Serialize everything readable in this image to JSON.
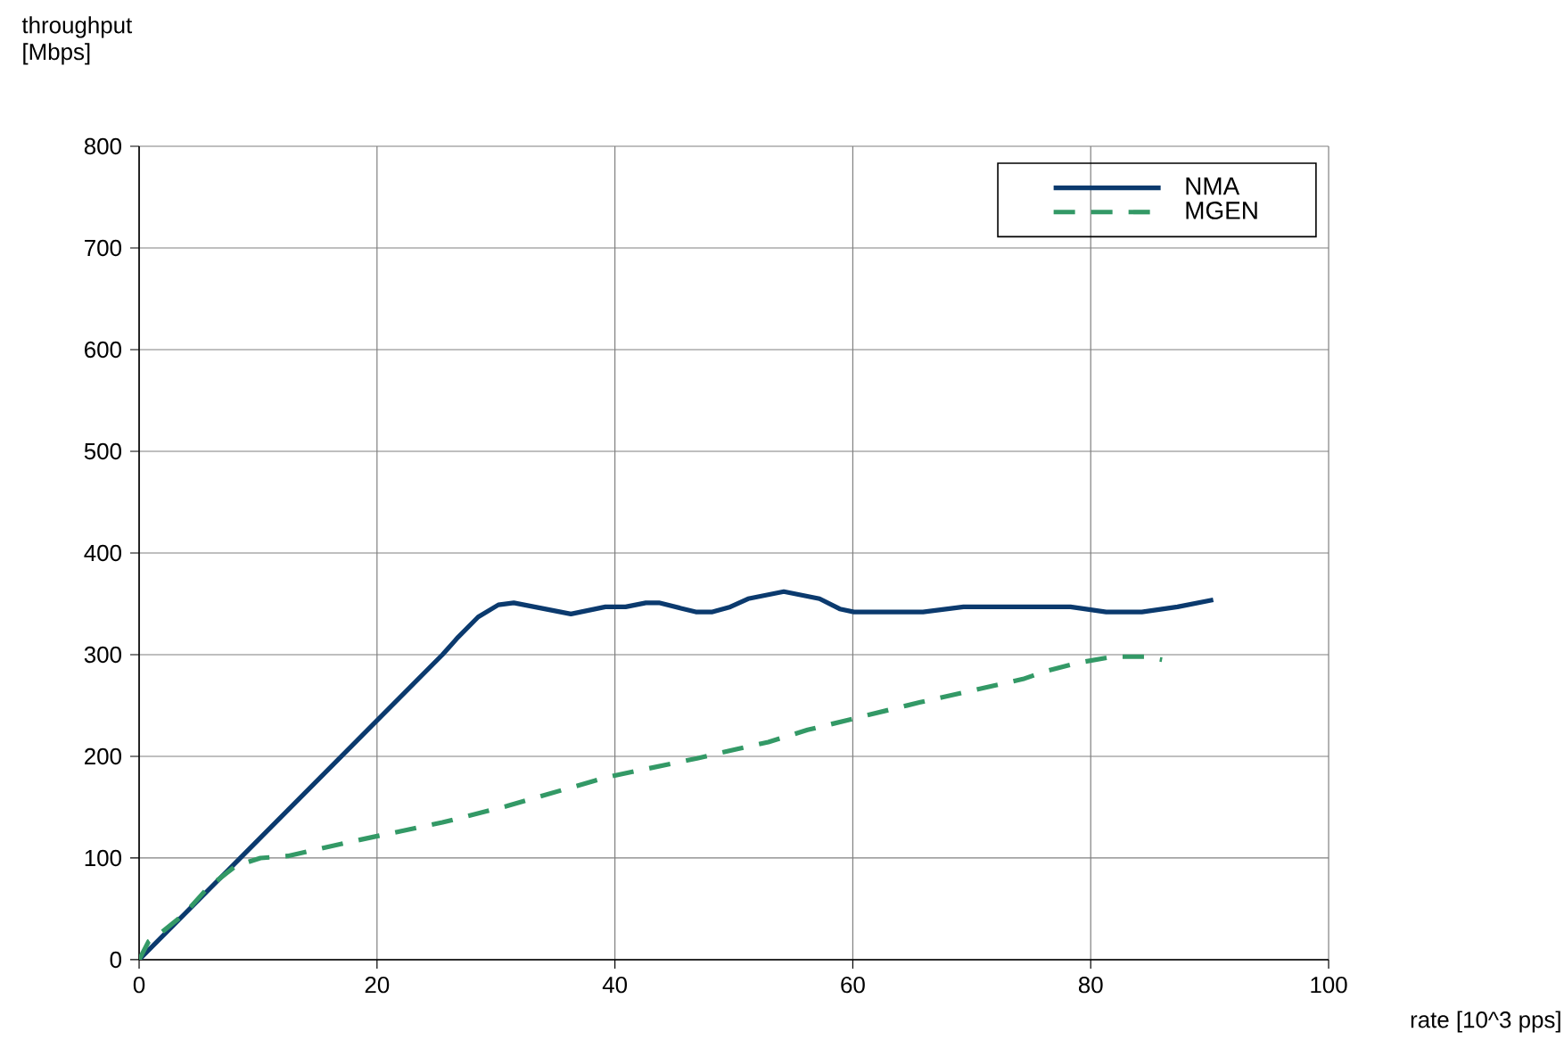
{
  "chart_data": {
    "type": "line",
    "xlabel": "rate [10^3 pps]",
    "ylabel": "throughput [Mbps]",
    "xlim": [
      0,
      100
    ],
    "ylim": [
      0,
      800
    ],
    "xticks": [
      0,
      20,
      40,
      60,
      80,
      100
    ],
    "yticks": [
      0,
      100,
      200,
      300,
      400,
      500,
      600,
      700,
      800
    ],
    "grid": true,
    "legend": "top right",
    "series": [
      {
        "name": "NMA",
        "color": "#0b3a6e",
        "line_style": "solid",
        "x": [
          0,
          25.5,
          26.8,
          28.5,
          30.2,
          31.5,
          36.3,
          39.2,
          40.9,
          42.6,
          43.7,
          46.8,
          48.2,
          49.7,
          51.2,
          54.2,
          57.2,
          58.9,
          60.1,
          65.9,
          69.3,
          78.3,
          81.3,
          84.3,
          87.3,
          90.3
        ],
        "values": [
          0,
          300,
          317,
          337,
          349,
          351,
          340,
          347,
          347,
          351,
          351,
          342,
          342,
          347,
          355,
          362,
          355,
          345,
          342,
          342,
          347,
          347,
          342,
          342,
          347,
          354
        ]
      },
      {
        "name": "MGEN",
        "color": "#339966",
        "line_style": "dashed",
        "x": [
          0,
          0.8,
          1.8,
          3.8,
          5.8,
          8.1,
          10.2,
          12.5,
          17.8,
          20.2,
          25.5,
          30.9,
          36.2,
          39.5,
          46.9,
          50.2,
          52.9,
          56.2,
          65.6,
          74.3,
          76.3,
          78.9,
          81.9,
          84.6,
          86
        ],
        "values": [
          0,
          18,
          26,
          45,
          71,
          92,
          100,
          102,
          116,
          122,
          135,
          151,
          169,
          180,
          198,
          207,
          214,
          226,
          253,
          276,
          284,
          292,
          298,
          298,
          295
        ]
      }
    ]
  }
}
